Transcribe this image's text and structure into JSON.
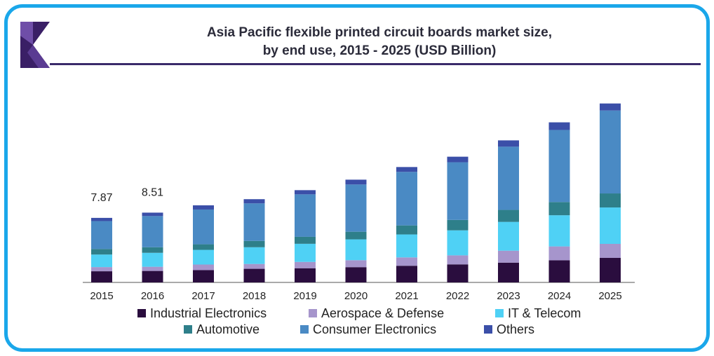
{
  "chart_data": {
    "type": "bar",
    "stacked": true,
    "title_line1": "Asia Pacific flexible printed circuit boards market size,",
    "title_line2": "by end use, 2015 - 2025 (USD Billion)",
    "categories": [
      "2015",
      "2016",
      "2017",
      "2018",
      "2019",
      "2020",
      "2021",
      "2022",
      "2023",
      "2024",
      "2025"
    ],
    "data_labels": [
      "7.87",
      "8.51",
      "",
      "",
      "",
      "",
      "",
      "",
      "",
      "",
      ""
    ],
    "series": [
      {
        "name": "Industrial Electronics",
        "color": "#2a0d3e",
        "values": [
          1.36,
          1.4,
          1.5,
          1.66,
          1.73,
          1.86,
          2.03,
          2.2,
          2.41,
          2.7,
          2.99
        ]
      },
      {
        "name": "Aerospace & Defense",
        "color": "#a695cc",
        "values": [
          0.51,
          0.51,
          0.68,
          0.59,
          0.77,
          0.85,
          1.02,
          1.1,
          1.46,
          1.69,
          1.71
        ]
      },
      {
        "name": "IT & Telecom",
        "color": "#4fd1f5",
        "values": [
          1.53,
          1.7,
          1.79,
          2.04,
          2.21,
          2.54,
          2.8,
          3.05,
          3.51,
          3.8,
          4.44
        ]
      },
      {
        "name": "Automotive",
        "color": "#2e7f8a",
        "values": [
          0.68,
          0.68,
          0.68,
          0.77,
          0.85,
          0.93,
          1.1,
          1.27,
          1.46,
          1.61,
          1.71
        ]
      },
      {
        "name": "Consumer Electronics",
        "color": "#4a8ac4",
        "values": [
          3.4,
          3.8,
          4.24,
          4.58,
          5.18,
          5.76,
          6.53,
          7.03,
          7.71,
          8.79,
          10.11
        ]
      },
      {
        "name": "Others",
        "color": "#3b4fa8",
        "values": [
          0.39,
          0.42,
          0.51,
          0.51,
          0.51,
          0.59,
          0.59,
          0.68,
          0.77,
          0.93,
          0.86
        ]
      }
    ],
    "ylim": [
      0,
      23.5
    ]
  }
}
